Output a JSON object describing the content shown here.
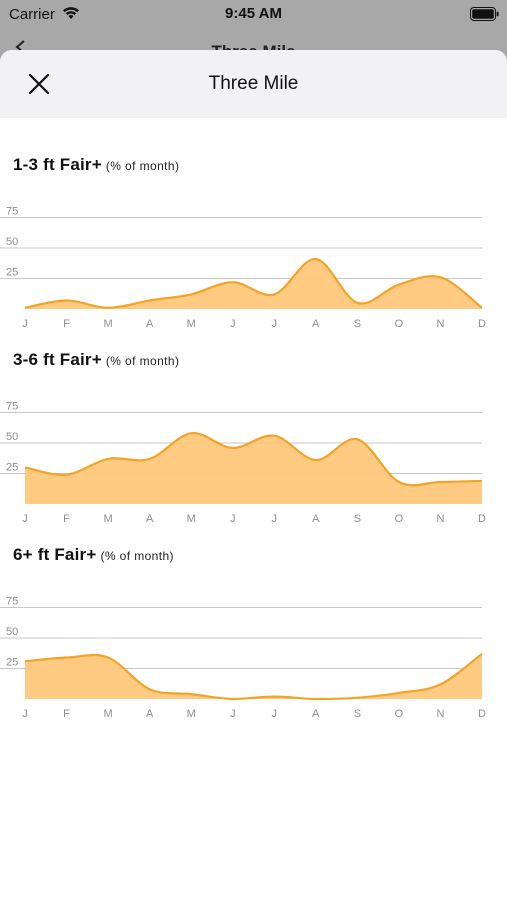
{
  "status_bar": {
    "carrier": "Carrier",
    "time": "9:45 AM",
    "wifi_icon": "wifi-icon",
    "battery_icon": "battery-icon"
  },
  "background_nav": {
    "title": "Three Mile",
    "back_icon": "chevron-left-icon"
  },
  "sheet": {
    "title": "Three Mile",
    "close_icon": "close-icon"
  },
  "colors": {
    "area_fill": "#ffc77a",
    "line": "#f3a327",
    "gridline": "#c7c7cc",
    "tick_text": "#8e8e93"
  },
  "chart_data": [
    {
      "type": "area",
      "title": "1-3 ft Fair+",
      "subtitle": "(% of month)",
      "categories": [
        "J",
        "F",
        "M",
        "A",
        "M",
        "J",
        "J",
        "A",
        "S",
        "O",
        "N",
        "D"
      ],
      "values": [
        1,
        7,
        1,
        7,
        12,
        22,
        12,
        41,
        5,
        20,
        26,
        1
      ],
      "yticks": [
        25,
        50,
        75
      ],
      "ylim": [
        0,
        80
      ],
      "grid": true
    },
    {
      "type": "area",
      "title": "3-6 ft Fair+",
      "subtitle": "(% of month)",
      "categories": [
        "J",
        "F",
        "M",
        "A",
        "M",
        "J",
        "J",
        "A",
        "S",
        "O",
        "N",
        "D"
      ],
      "values": [
        30,
        24,
        37,
        37,
        58,
        46,
        56,
        36,
        53,
        18,
        18,
        19
      ],
      "yticks": [
        25,
        50,
        75
      ],
      "ylim": [
        0,
        80
      ],
      "grid": true
    },
    {
      "type": "area",
      "title": "6+ ft Fair+",
      "subtitle": "(% of month)",
      "categories": [
        "J",
        "F",
        "M",
        "A",
        "M",
        "J",
        "J",
        "A",
        "S",
        "O",
        "N",
        "D"
      ],
      "values": [
        31,
        34,
        34,
        8,
        4,
        0,
        2,
        0,
        1,
        5,
        12,
        37
      ],
      "yticks": [
        25,
        50,
        75
      ],
      "ylim": [
        0,
        80
      ],
      "grid": true
    }
  ]
}
